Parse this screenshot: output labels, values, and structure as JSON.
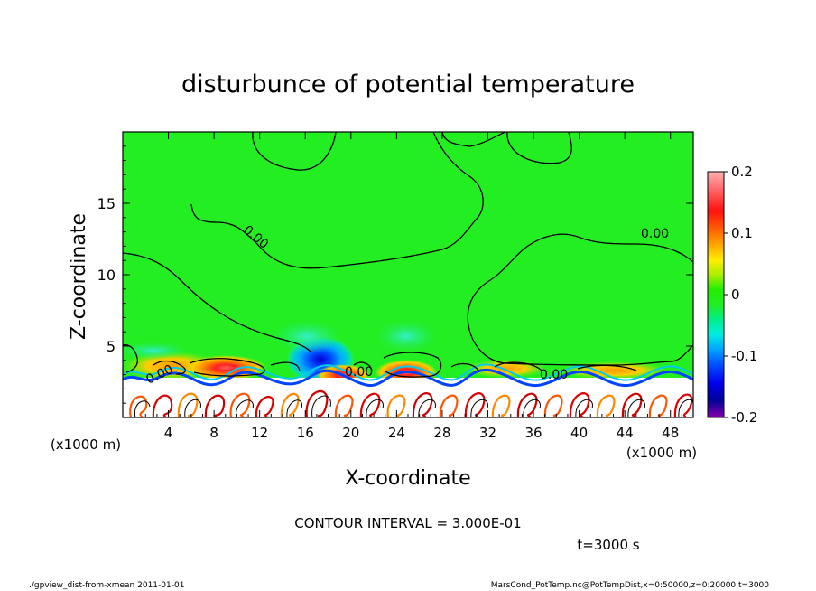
{
  "chart_data": {
    "type": "heatmap",
    "title": "disturbunce of potential temperature",
    "xlabel": "X-coordinate",
    "ylabel": "Z-coordinate",
    "x_unit": "(x1000 m)",
    "y_unit": "(x1000 m)",
    "xlim": [
      0,
      50
    ],
    "ylim": [
      0,
      20
    ],
    "x_ticks": [
      4,
      8,
      12,
      16,
      20,
      24,
      28,
      32,
      36,
      40,
      44,
      48
    ],
    "y_ticks": [
      5,
      10,
      15
    ],
    "colorbar": {
      "range": [
        -0.2,
        0.2
      ],
      "tick_labels": [
        "0.2",
        "0.1",
        "0",
        "-0.1",
        "-0.2"
      ],
      "tick_values": [
        0.2,
        0.1,
        0,
        -0.1,
        -0.2
      ]
    },
    "contour_labels": [
      "0.00",
      "0.00",
      "0.00",
      "0.00",
      "0.00"
    ],
    "colors": {
      "background_field": "#22ee22",
      "zero_contour": "#000000"
    }
  },
  "texts": {
    "contour_interval": "CONTOUR INTERVAL = 3.000E-01",
    "time": "t=3000 s",
    "footer_left": "./gpview_dist-from-xmean   2011-01-01",
    "footer_right": "MarsCond_PotTemp.nc@PotTempDist,x=0:50000,z=0:20000,t=3000"
  }
}
